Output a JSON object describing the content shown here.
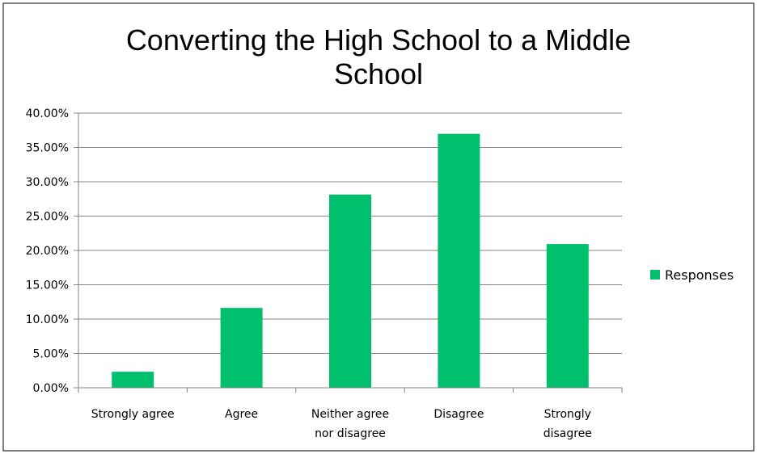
{
  "chart_data": {
    "type": "bar",
    "title_lines": [
      "Converting the High School to a Middle",
      "School"
    ],
    "categories": [
      [
        "Strongly agree"
      ],
      [
        "Agree"
      ],
      [
        "Neither agree",
        "nor disagree"
      ],
      [
        "Disagree"
      ],
      [
        "Strongly",
        "disagree"
      ]
    ],
    "series": [
      {
        "name": "Responses",
        "values": [
          0.0233,
          0.1163,
          0.2814,
          0.3698,
          0.2093
        ],
        "color": "#00c06e"
      }
    ],
    "y_ticks": [
      "0.00%",
      "5.00%",
      "10.00%",
      "15.00%",
      "20.00%",
      "25.00%",
      "30.00%",
      "35.00%",
      "40.00%"
    ],
    "ylim": [
      0,
      0.4
    ],
    "grid": true,
    "legend_position": "right",
    "colors": {
      "gridline": "#868686",
      "axis": "#868686",
      "frame": "#000000"
    }
  }
}
